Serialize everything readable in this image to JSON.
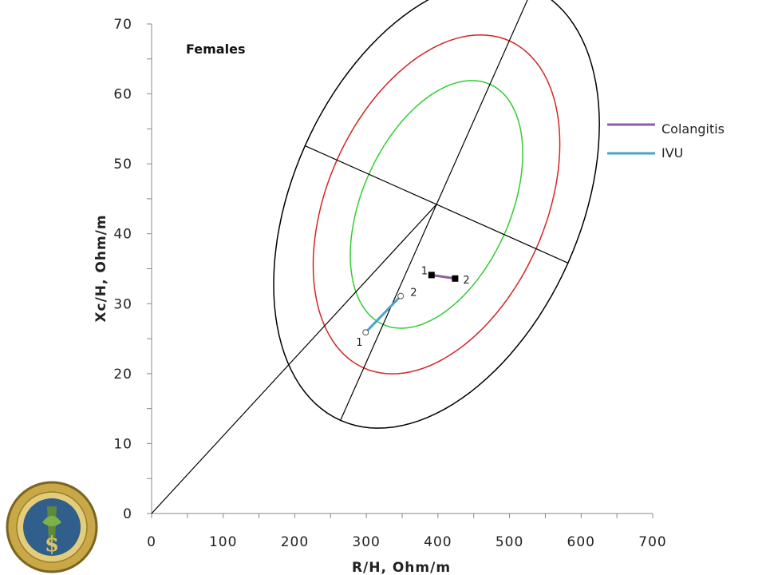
{
  "chart_data": {
    "type": "scatter",
    "title": "Females",
    "xlabel": "R/H, Ohm/m",
    "ylabel": "Xc/H, Ohm/m",
    "xlim": [
      0,
      700
    ],
    "ylim": [
      0,
      70
    ],
    "x_ticks": [
      "0",
      "100",
      "200",
      "300",
      "400",
      "500",
      "600",
      "700"
    ],
    "y_ticks": [
      "0",
      "10",
      "20",
      "30",
      "40",
      "50",
      "60",
      "70"
    ],
    "legend_position": "right",
    "grid": false,
    "ellipses": {
      "center": [
        398,
        44.2
      ],
      "angle_deg": 66,
      "rings": [
        {
          "semi_major": 18.8,
          "semi_minor": 10.6,
          "color": "#33cc33"
        },
        {
          "semi_major": 25.6,
          "semi_minor": 15.6,
          "color": "#d42424"
        },
        {
          "semi_major": 33.8,
          "semi_minor": 20.6,
          "color": "#000000"
        }
      ]
    },
    "reference_line": {
      "from": [
        0,
        0
      ],
      "to": [
        398,
        44.2
      ]
    },
    "series": [
      {
        "name": "Colangitis",
        "color": "#8e5ea2",
        "marker": "filled-square",
        "points": [
          {
            "label": "1",
            "x": 391,
            "y": 34.1
          },
          {
            "label": "2",
            "x": 424,
            "y": 33.6
          }
        ]
      },
      {
        "name": "IVU",
        "color": "#4aa3c8",
        "marker": "open-circle",
        "points": [
          {
            "label": "1",
            "x": 299,
            "y": 25.9
          },
          {
            "label": "2",
            "x": 348,
            "y": 31.1
          }
        ]
      }
    ]
  },
  "logo": {
    "name": "seal-emblem",
    "colors": [
      "#c8a847",
      "#2f5f8a",
      "#5e8a3a"
    ]
  }
}
